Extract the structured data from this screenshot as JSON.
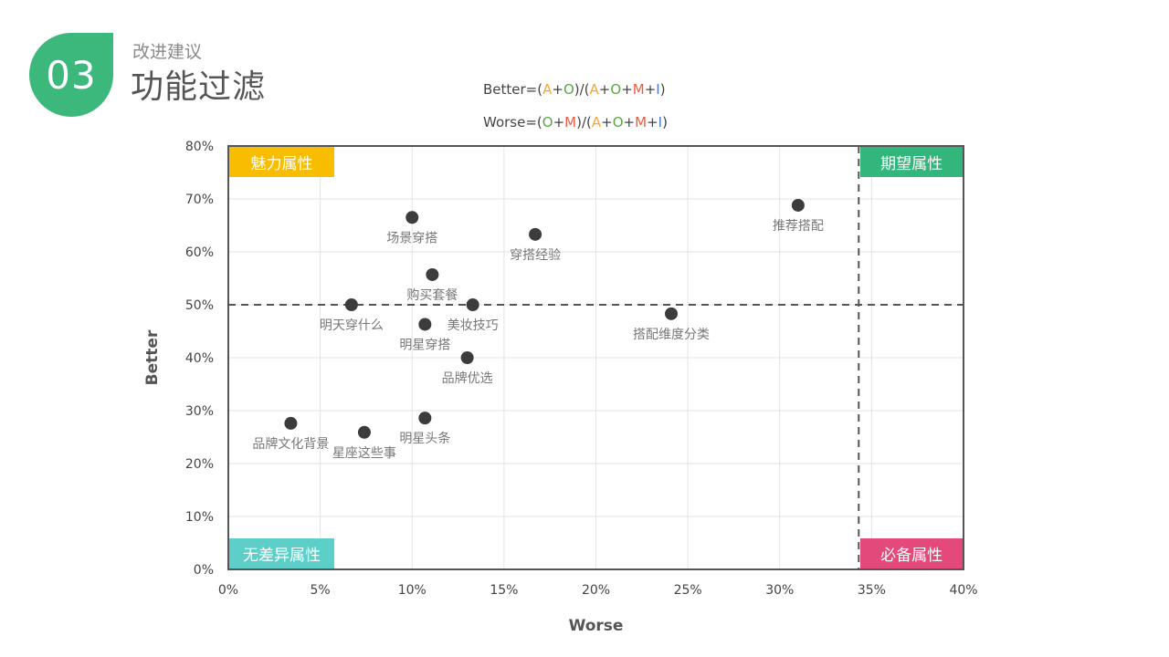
{
  "header": {
    "number": "03",
    "subtitle": "改进建议",
    "title": "功能过滤"
  },
  "formulas": {
    "better": {
      "prefix": "Better=(",
      "A": "A",
      "p1": "+",
      "O": "O",
      "mid": ")/(",
      "A2": "A",
      "p2": "+",
      "O2": "O",
      "p3": "+",
      "M": "M",
      "p4": "+",
      "I": "I",
      "suffix": ")"
    },
    "worse": {
      "prefix": "Worse=(",
      "O": "O",
      "p1": "+",
      "M": "M",
      "mid": ")/(",
      "A": "A",
      "p2": "+",
      "O2": "O",
      "p3": "+",
      "M2": "M",
      "p4": "+",
      "I": "I",
      "suffix": ")"
    }
  },
  "quadrants": {
    "top_left": "魅力属性",
    "top_right": "期望属性",
    "bottom_left": "无差异属性",
    "bottom_right": "必备属性"
  },
  "colors": {
    "badge": "#3cb87c",
    "charm": "#f9bd00",
    "expect": "#33b67b",
    "indiff": "#5ecfc8",
    "must": "#e34a7b",
    "point": "#3c3c3c"
  },
  "chart_data": {
    "type": "scatter",
    "xlabel": "Worse",
    "ylabel": "Better",
    "xlim": [
      0,
      40
    ],
    "ylim": [
      0,
      80
    ],
    "x_ticks": [
      "0%",
      "5%",
      "10%",
      "15%",
      "20%",
      "25%",
      "30%",
      "35%",
      "40%"
    ],
    "y_ticks": [
      "0%",
      "10%",
      "20%",
      "30%",
      "40%",
      "50%",
      "60%",
      "70%",
      "80%"
    ],
    "threshold_x": 34.3,
    "threshold_y": 50,
    "grid": true,
    "points": [
      {
        "label": "场景穿搭",
        "x": 10.0,
        "y": 66.5
      },
      {
        "label": "穿搭经验",
        "x": 16.7,
        "y": 63.3
      },
      {
        "label": "推荐搭配",
        "x": 31.0,
        "y": 68.8
      },
      {
        "label": "购买套餐",
        "x": 11.1,
        "y": 55.7
      },
      {
        "label": "明天穿什么",
        "x": 6.7,
        "y": 50.0
      },
      {
        "label": "美妆技巧",
        "x": 13.3,
        "y": 50.0
      },
      {
        "label": "明星穿搭",
        "x": 10.7,
        "y": 46.3
      },
      {
        "label": "搭配维度分类",
        "x": 24.1,
        "y": 48.3
      },
      {
        "label": "品牌优选",
        "x": 13.0,
        "y": 40.0
      },
      {
        "label": "品牌文化背景",
        "x": 3.4,
        "y": 27.6
      },
      {
        "label": "星座这些事",
        "x": 7.4,
        "y": 25.9
      },
      {
        "label": "明星头条",
        "x": 10.7,
        "y": 28.6
      }
    ]
  }
}
